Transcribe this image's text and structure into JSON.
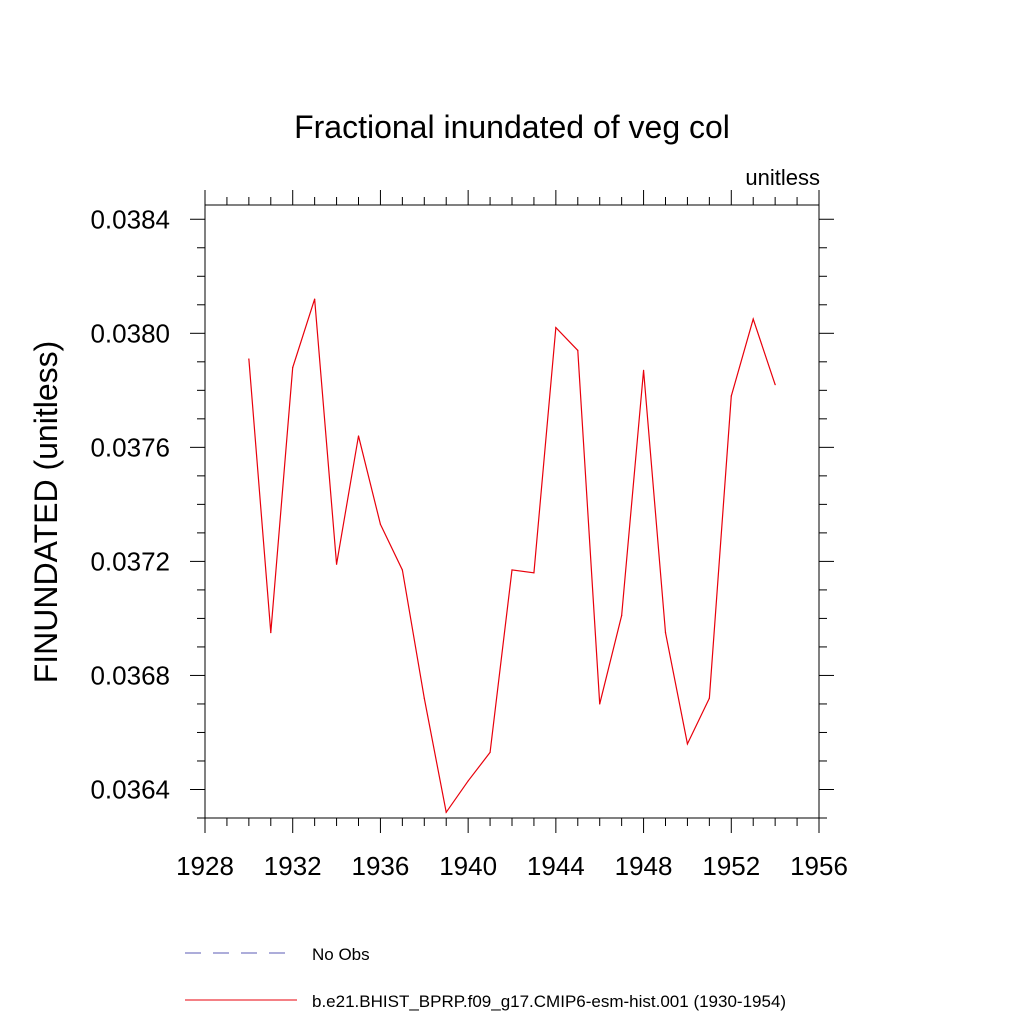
{
  "chart_data": {
    "type": "line",
    "title": "Fractional inundated of veg col",
    "units_label": "unitless",
    "ylabel": "FINUNDATED  (unitless)",
    "xlabel": "",
    "xlim": [
      1928,
      1956
    ],
    "ylim": [
      0.0363,
      0.03845
    ],
    "x_ticks": [
      1928,
      1932,
      1936,
      1940,
      1944,
      1948,
      1952,
      1956
    ],
    "x_tick_labels": [
      "1928",
      "1932",
      "1936",
      "1940",
      "1944",
      "1948",
      "1952",
      "1956"
    ],
    "y_ticks": [
      0.0364,
      0.0368,
      0.0372,
      0.0376,
      0.038,
      0.0384
    ],
    "y_tick_labels": [
      "0.0364",
      "0.0368",
      "0.0372",
      "0.0376",
      "0.0380",
      "0.0384"
    ],
    "x_minor_step": 1,
    "y_minor_step": 0.0001,
    "series": [
      {
        "name": "b.e21.BHIST_BPRP.f09_g17.CMIP6-esm-hist.001 (1930-1954)",
        "color": "#e8000b",
        "x": [
          1930,
          1931,
          1932,
          1933,
          1934,
          1935,
          1936,
          1937,
          1938,
          1939,
          1940,
          1941,
          1942,
          1943,
          1944,
          1945,
          1946,
          1947,
          1948,
          1949,
          1950,
          1951,
          1952,
          1953,
          1954
        ],
        "values": [
          0.03791,
          0.03695,
          0.03788,
          0.03812,
          0.03719,
          0.03764,
          0.03733,
          0.03717,
          0.03672,
          0.03632,
          0.03643,
          0.03653,
          0.03717,
          0.03716,
          0.03802,
          0.03794,
          0.0367,
          0.03701,
          0.03787,
          0.03695,
          0.03656,
          0.03672,
          0.03778,
          0.03805,
          0.03782
        ]
      }
    ],
    "legend": [
      {
        "label": "No Obs",
        "color": "#5b5bb5",
        "style": "dashed"
      },
      {
        "label": "b.e21.BHIST_BPRP.f09_g17.CMIP6-esm-hist.001 (1930-1954)",
        "color": "#e8000b",
        "style": "solid"
      }
    ],
    "legend_position": "bottom"
  }
}
